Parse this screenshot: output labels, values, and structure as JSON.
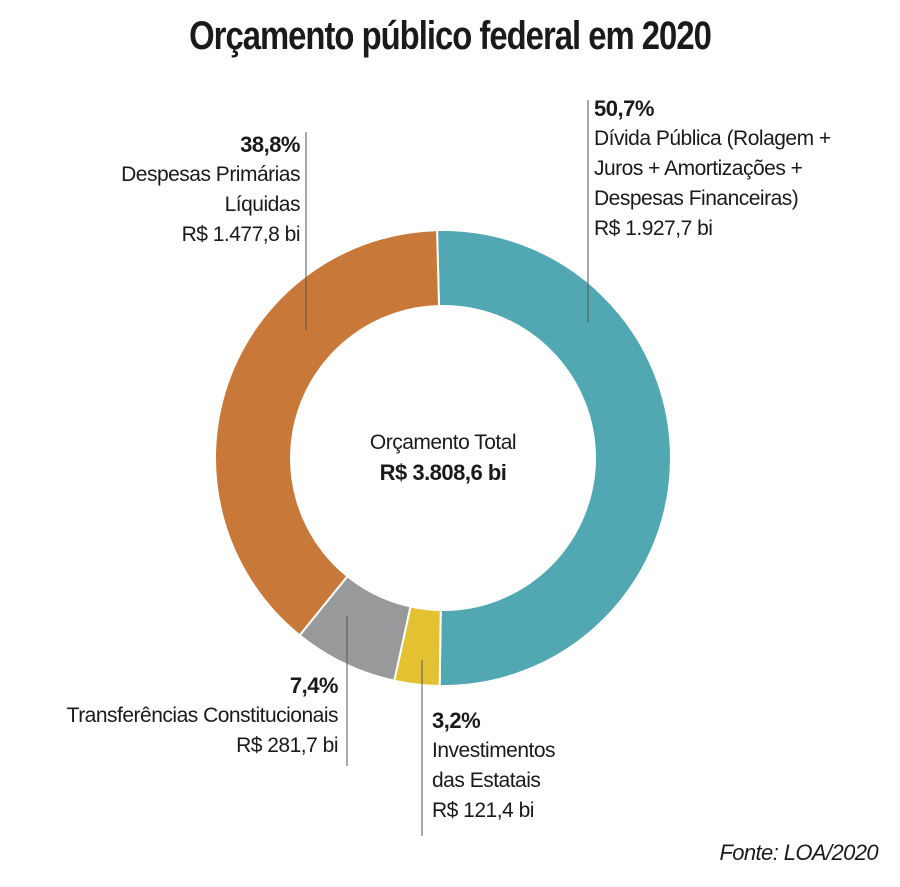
{
  "title": "Orçamento público federal em 2020",
  "center": {
    "label": "Orçamento Total",
    "value": "R$ 3.808,6 bi"
  },
  "source": "Fonte: LOA/2020",
  "chart_data": {
    "type": "pie",
    "title": "Orçamento público federal em 2020",
    "total": 3808.6,
    "slices": [
      {
        "id": "divida",
        "percent": 50.7,
        "value": 1927.7,
        "pct_label": "50,7%",
        "name_lines": [
          "Dívida Pública (Rolagem +",
          "Juros + Amortizações +",
          "Despesas Financeiras)"
        ],
        "value_label": "R$ 1.927,7 bi",
        "color": "#52a8b2"
      },
      {
        "id": "investimentos",
        "percent": 3.2,
        "value": 121.4,
        "pct_label": "3,2%",
        "name_lines": [
          "Investimentos",
          "das Estatais"
        ],
        "value_label": "R$ 121,4 bi",
        "color": "#e3c130"
      },
      {
        "id": "transferencias",
        "percent": 7.4,
        "value": 281.7,
        "pct_label": "7,4%",
        "name_lines": [
          "Transferências Constitucionais"
        ],
        "value_label": "R$ 281,7 bi",
        "color": "#98999b"
      },
      {
        "id": "despesas",
        "percent": 38.8,
        "value": 1477.8,
        "pct_label": "38,8%",
        "name_lines": [
          "Despesas Primárias",
          "Líquidas"
        ],
        "value_label": "R$ 1.477,8 bi",
        "color": "#c8793a"
      }
    ]
  }
}
